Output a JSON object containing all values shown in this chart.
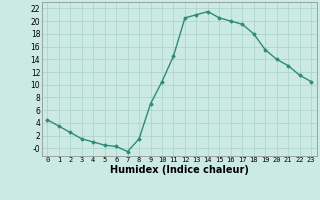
{
  "x": [
    0,
    1,
    2,
    3,
    4,
    5,
    6,
    7,
    8,
    9,
    10,
    11,
    12,
    13,
    14,
    15,
    16,
    17,
    18,
    19,
    20,
    21,
    22,
    23
  ],
  "y": [
    4.5,
    3.5,
    2.5,
    1.5,
    1.0,
    0.5,
    0.3,
    -0.5,
    1.5,
    7.0,
    10.5,
    14.5,
    20.5,
    21.0,
    21.5,
    20.5,
    20.0,
    19.5,
    18.0,
    15.5,
    14.0,
    13.0,
    11.5,
    10.5
  ],
  "line_color": "#2e8b7a",
  "marker": "D",
  "marker_size": 1.5,
  "linewidth": 1.0,
  "bg_color": "#cceae4",
  "grid_color": "#aacfc8",
  "xlabel": "Humidex (Indice chaleur)",
  "xlabel_fontsize": 7,
  "ylabel_ticks": [
    0,
    2,
    4,
    6,
    8,
    10,
    12,
    14,
    16,
    18,
    20,
    22
  ],
  "ylabel_labels": [
    "-0",
    "2",
    "4",
    "6",
    "8",
    "10",
    "12",
    "14",
    "16",
    "18",
    "20",
    "22"
  ],
  "xlim": [
    -0.5,
    23.5
  ],
  "ylim": [
    -1.2,
    23.0
  ],
  "xtick_labels": [
    "0",
    "1",
    "2",
    "3",
    "4",
    "5",
    "6",
    "7",
    "8",
    "9",
    "10",
    "11",
    "12",
    "13",
    "14",
    "15",
    "16",
    "17",
    "18",
    "19",
    "20",
    "21",
    "22",
    "23"
  ]
}
